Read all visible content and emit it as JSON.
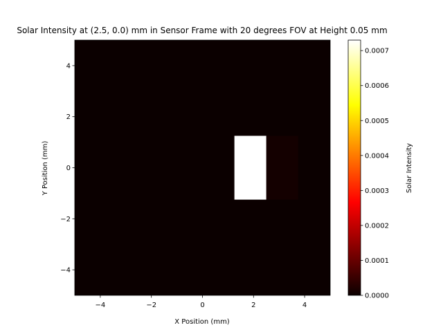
{
  "chart_data": {
    "type": "heatmap",
    "title": "Solar Intensity at (2.5, 0.0) mm in Sensor Frame with 20 degrees FOV at Height 0.05 mm",
    "xlabel": "X Position (mm)",
    "ylabel": "Y Position (mm)",
    "xlim": [
      -5,
      5
    ],
    "ylim": [
      -5,
      5
    ],
    "x_ticks": [
      -4,
      -2,
      0,
      2,
      4
    ],
    "y_ticks": [
      -4,
      -2,
      0,
      2,
      4
    ],
    "x_tick_labels": [
      "−4",
      "−2",
      "0",
      "2",
      "4"
    ],
    "y_tick_labels": [
      "−4",
      "−2",
      "0",
      "2",
      "4"
    ],
    "grid": false,
    "colormap": "hot",
    "background_value": 0.0,
    "cells": [
      {
        "x0": 1.25,
        "x1": 2.5,
        "y0": -1.25,
        "y1": 1.25,
        "value": 0.00073
      },
      {
        "x0": 2.5,
        "x1": 3.75,
        "y0": -1.25,
        "y1": 1.25,
        "value": 1e-05
      }
    ],
    "colorbar": {
      "label": "Solar Intensity",
      "range": [
        0.0,
        0.00073
      ],
      "ticks": [
        0.0,
        0.0001,
        0.0002,
        0.0003,
        0.0004,
        0.0005,
        0.0006,
        0.0007
      ],
      "tick_labels": [
        "0.0000",
        "0.0001",
        "0.0002",
        "0.0003",
        "0.0004",
        "0.0005",
        "0.0006",
        "0.0007"
      ]
    }
  }
}
